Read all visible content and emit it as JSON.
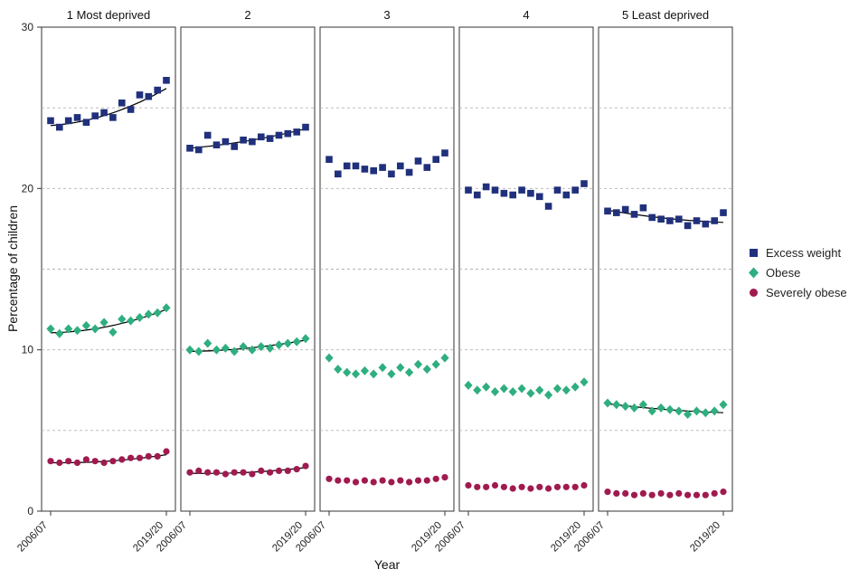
{
  "chart_data": {
    "type": "scatter",
    "title": "",
    "xlabel": "Year",
    "ylabel": "Percentage of children",
    "ylim": [
      0,
      30
    ],
    "yticks": [
      0,
      10,
      20,
      30
    ],
    "gridlines_dashed": [
      5,
      10,
      15,
      20,
      25
    ],
    "x_tick_labels": [
      "2006/07",
      "2019/20"
    ],
    "n_years": 14,
    "legend": [
      {
        "label": "Excess weight",
        "marker": "square",
        "color": "#20307c"
      },
      {
        "label": "Obese",
        "marker": "diamond",
        "color": "#2fae7f"
      },
      {
        "label": "Severely obese",
        "marker": "circle",
        "color": "#a01a50"
      }
    ],
    "panels": [
      {
        "title": "1 Most deprived",
        "series": {
          "excess_weight": {
            "values": [
              24.2,
              23.8,
              24.2,
              24.4,
              24.1,
              24.5,
              24.7,
              24.4,
              25.3,
              24.9,
              25.8,
              25.7,
              26.1,
              26.7
            ],
            "trend": [
              23.9,
              24.6,
              26.2
            ]
          },
          "obese": {
            "values": [
              11.3,
              11.0,
              11.3,
              11.2,
              11.5,
              11.3,
              11.7,
              11.1,
              11.9,
              11.8,
              12.0,
              12.2,
              12.3,
              12.6
            ],
            "trend": [
              11.05,
              11.45,
              12.5
            ]
          },
          "severely_obese": {
            "values": [
              3.1,
              3.0,
              3.1,
              3.0,
              3.2,
              3.1,
              3.0,
              3.1,
              3.2,
              3.3,
              3.3,
              3.4,
              3.4,
              3.7
            ],
            "trend": [
              3.0,
              3.1,
              3.5
            ]
          }
        }
      },
      {
        "title": "2",
        "series": {
          "excess_weight": {
            "values": [
              22.5,
              22.4,
              23.3,
              22.7,
              22.9,
              22.6,
              23.0,
              22.9,
              23.2,
              23.1,
              23.3,
              23.4,
              23.5,
              23.8
            ],
            "trend": [
              22.5,
              22.95,
              23.7
            ]
          },
          "obese": {
            "values": [
              10.0,
              9.9,
              10.4,
              10.0,
              10.1,
              9.9,
              10.2,
              10.0,
              10.2,
              10.1,
              10.3,
              10.4,
              10.5,
              10.7
            ],
            "trend": [
              9.9,
              10.1,
              10.6
            ]
          },
          "severely_obese": {
            "values": [
              2.4,
              2.5,
              2.4,
              2.4,
              2.3,
              2.4,
              2.4,
              2.3,
              2.5,
              2.4,
              2.5,
              2.5,
              2.6,
              2.8
            ],
            "trend": [
              2.35,
              2.4,
              2.7
            ]
          }
        }
      },
      {
        "title": "3",
        "series": {
          "excess_weight": {
            "values": [
              21.8,
              20.9,
              21.4,
              21.4,
              21.2,
              21.1,
              21.3,
              20.9,
              21.4,
              21.0,
              21.7,
              21.3,
              21.8,
              22.2
            ],
            "trend": null
          },
          "obese": {
            "values": [
              9.5,
              8.8,
              8.6,
              8.5,
              8.7,
              8.5,
              8.9,
              8.5,
              8.9,
              8.6,
              9.1,
              8.8,
              9.1,
              9.5
            ],
            "trend": null
          },
          "severely_obese": {
            "values": [
              2.0,
              1.9,
              1.9,
              1.8,
              1.9,
              1.8,
              1.9,
              1.8,
              1.9,
              1.8,
              1.9,
              1.9,
              2.0,
              2.1
            ],
            "trend": null
          }
        }
      },
      {
        "title": "4",
        "series": {
          "excess_weight": {
            "values": [
              19.9,
              19.6,
              20.1,
              19.9,
              19.7,
              19.6,
              19.9,
              19.7,
              19.5,
              18.9,
              19.9,
              19.6,
              19.9,
              20.3
            ],
            "trend": null
          },
          "obese": {
            "values": [
              7.8,
              7.5,
              7.7,
              7.4,
              7.6,
              7.4,
              7.6,
              7.3,
              7.5,
              7.2,
              7.6,
              7.5,
              7.7,
              8.0
            ],
            "trend": null
          },
          "severely_obese": {
            "values": [
              1.6,
              1.5,
              1.5,
              1.6,
              1.5,
              1.4,
              1.5,
              1.4,
              1.5,
              1.4,
              1.5,
              1.5,
              1.5,
              1.6
            ],
            "trend": null
          }
        }
      },
      {
        "title": "5 Least deprived",
        "series": {
          "excess_weight": {
            "values": [
              18.6,
              18.5,
              18.7,
              18.4,
              18.8,
              18.2,
              18.1,
              18.0,
              18.1,
              17.7,
              18.0,
              17.8,
              18.0,
              18.5
            ],
            "trend": [
              18.65,
              18.15,
              17.9
            ]
          },
          "obese": {
            "values": [
              6.7,
              6.6,
              6.5,
              6.4,
              6.6,
              6.2,
              6.4,
              6.3,
              6.2,
              6.0,
              6.2,
              6.1,
              6.2,
              6.6
            ],
            "trend": [
              6.65,
              6.3,
              6.1
            ]
          },
          "severely_obese": {
            "values": [
              1.2,
              1.1,
              1.1,
              1.0,
              1.1,
              1.0,
              1.1,
              1.0,
              1.1,
              1.0,
              1.0,
              1.0,
              1.1,
              1.2
            ],
            "trend": null
          }
        }
      }
    ]
  }
}
